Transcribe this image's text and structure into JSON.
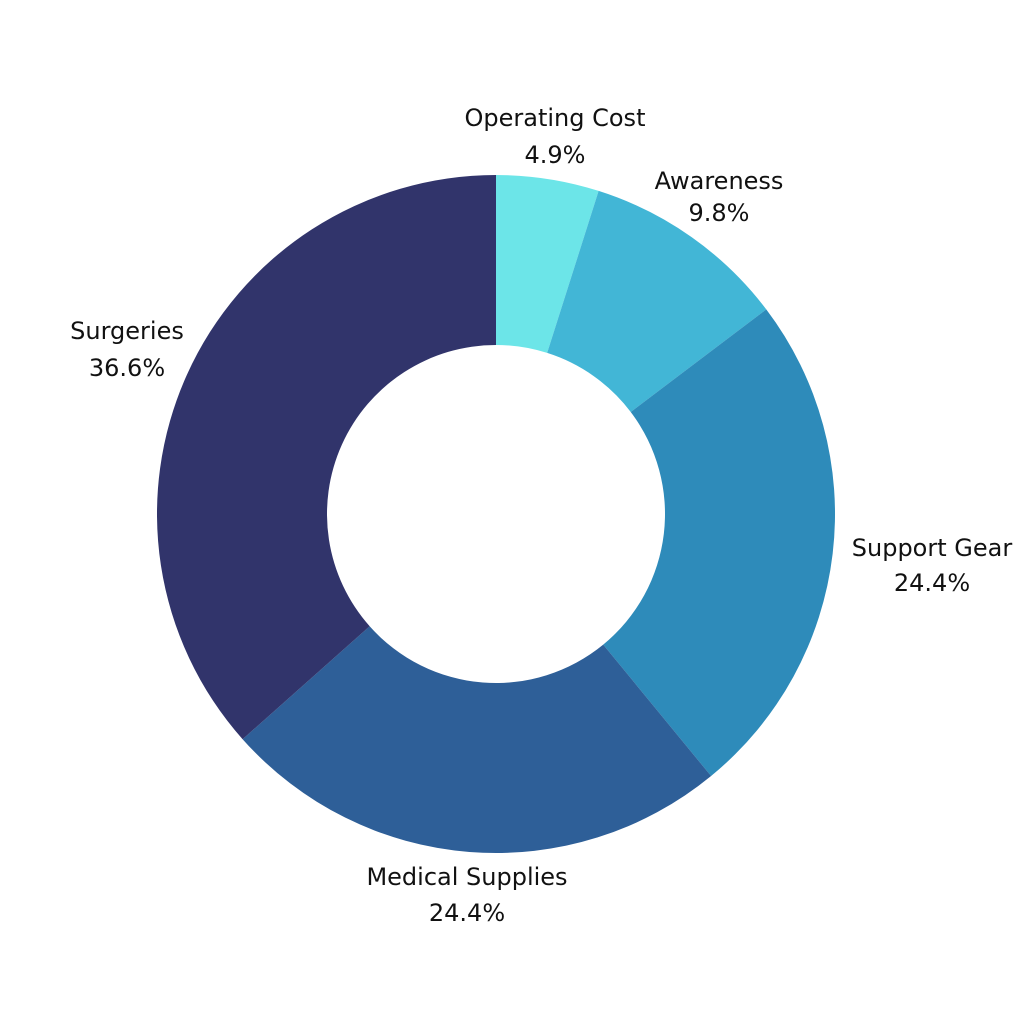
{
  "chart_data": {
    "type": "pie",
    "donut": true,
    "start": "top",
    "direction": "clockwise",
    "slices": [
      {
        "label": "Operating Cost",
        "value": 4.9,
        "value_label": "4.9%",
        "color": "#6ce5e8"
      },
      {
        "label": "Awareness",
        "value": 9.8,
        "value_label": "9.8%",
        "color": "#42b6d6"
      },
      {
        "label": "Support Gear",
        "value": 24.4,
        "value_label": "24.4%",
        "color": "#2e8bba"
      },
      {
        "label": "Medical Supplies",
        "value": 24.4,
        "value_label": "24.4%",
        "color": "#2e5f98"
      },
      {
        "label": "Surgeries",
        "value": 36.6,
        "value_label": "36.6%",
        "color": "#31346b"
      }
    ]
  }
}
